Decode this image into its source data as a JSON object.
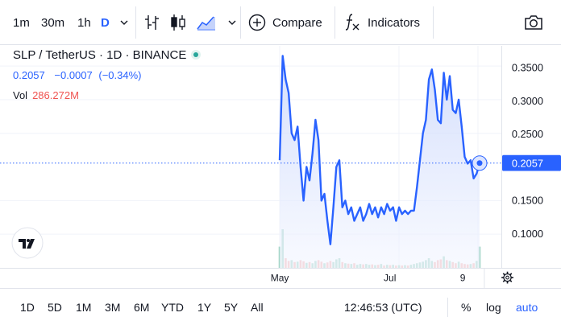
{
  "toolbar": {
    "intervals": [
      "1m",
      "30m",
      "1h",
      "D"
    ],
    "active_interval": "D",
    "compare_label": "Compare",
    "indicators_label": "Indicators"
  },
  "legend": {
    "symbol": "SLP / TetherUS · 1D · BINANCE",
    "price": "0.2057",
    "change": "−0.0007",
    "change_pct": "(−0.34%)",
    "vol_label": "Vol",
    "vol_value": "286.272M"
  },
  "colors": {
    "line": "#2962ff",
    "area_top": "#c5d3fb",
    "area_bottom": "#f3f6ff",
    "price_tag": "#2962ff",
    "volume_up": "#a5d6c9",
    "volume_down": "#f5b7b5",
    "grid": "#f0f3fa"
  },
  "chart_data": {
    "type": "area",
    "title": "SLP / TetherUS · 1D · BINANCE",
    "x_ticks": [
      "May",
      "Jul",
      "9"
    ],
    "y_ticks": [
      "0.3500",
      "0.3000",
      "0.2500",
      "0.1500",
      "0.1000"
    ],
    "ylim": [
      0.05,
      0.38
    ],
    "last_price_label": "0.2057",
    "series": [
      {
        "values": [
          0.21,
          0.365,
          0.33,
          0.31,
          0.25,
          0.24,
          0.26,
          0.2,
          0.15,
          0.2,
          0.18,
          0.22,
          0.27,
          0.24,
          0.15,
          0.16,
          0.12,
          0.085,
          0.14,
          0.2,
          0.21,
          0.14,
          0.15,
          0.13,
          0.14,
          0.12,
          0.13,
          0.14,
          0.12,
          0.13,
          0.145,
          0.13,
          0.14,
          0.125,
          0.14,
          0.13,
          0.145,
          0.135,
          0.14,
          0.12,
          0.14,
          0.13,
          0.135,
          0.13,
          0.135,
          0.135,
          0.17,
          0.21,
          0.25,
          0.27,
          0.33,
          0.345,
          0.315,
          0.27,
          0.265,
          0.34,
          0.3,
          0.335,
          0.285,
          0.28,
          0.3,
          0.26,
          0.215,
          0.205,
          0.21,
          0.183,
          0.19,
          0.2057
        ]
      }
    ],
    "volume": {
      "label": "Vol",
      "last": "286.272M",
      "values": [
        0.55,
        1.0,
        0.25,
        0.18,
        0.2,
        0.15,
        0.16,
        0.2,
        0.17,
        0.13,
        0.15,
        0.12,
        0.18,
        0.2,
        0.16,
        0.12,
        0.14,
        0.18,
        0.15,
        0.22,
        0.25,
        0.15,
        0.12,
        0.11,
        0.1,
        0.12,
        0.08,
        0.1,
        0.09,
        0.1,
        0.08,
        0.09,
        0.07,
        0.08,
        0.1,
        0.06,
        0.08,
        0.07,
        0.08,
        0.06,
        0.07,
        0.06,
        0.07,
        0.06,
        0.08,
        0.1,
        0.12,
        0.14,
        0.16,
        0.2,
        0.25,
        0.18,
        0.15,
        0.2,
        0.22,
        0.3,
        0.2,
        0.18,
        0.15,
        0.12,
        0.16,
        0.12,
        0.1,
        0.09,
        0.1,
        0.12,
        0.18,
        0.55
      ],
      "directions": [
        "u",
        "u",
        "d",
        "d",
        "u",
        "d",
        "u",
        "d",
        "d",
        "u",
        "d",
        "u",
        "u",
        "d",
        "d",
        "u",
        "d",
        "d",
        "u",
        "u",
        "u",
        "d",
        "u",
        "d",
        "u",
        "d",
        "u",
        "u",
        "d",
        "u",
        "u",
        "d",
        "u",
        "d",
        "u",
        "d",
        "u",
        "d",
        "u",
        "d",
        "u",
        "d",
        "u",
        "d",
        "u",
        "u",
        "u",
        "u",
        "u",
        "u",
        "u",
        "u",
        "d",
        "d",
        "d",
        "u",
        "d",
        "u",
        "d",
        "d",
        "u",
        "d",
        "d",
        "d",
        "u",
        "d",
        "u",
        "u"
      ]
    }
  },
  "footer": {
    "ranges": [
      "1D",
      "5D",
      "1M",
      "3M",
      "6M",
      "YTD",
      "1Y",
      "5Y",
      "All"
    ],
    "clock": "12:46:53 (UTC)",
    "percent_label": "%",
    "log_label": "log",
    "auto_label": "auto"
  }
}
